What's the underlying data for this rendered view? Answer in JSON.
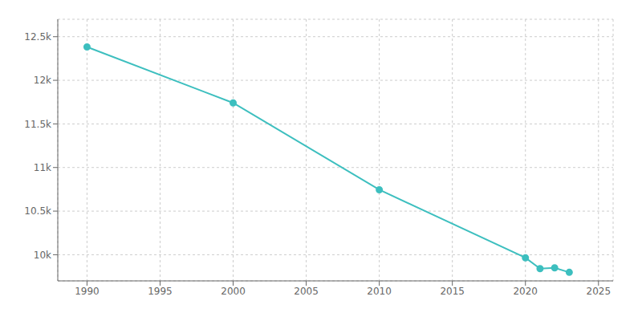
{
  "chart_data": {
    "type": "line",
    "x": [
      1990,
      2000,
      2010,
      2020,
      2021,
      2022,
      2023
    ],
    "values": [
      12383,
      11741,
      10745,
      9965,
      9840,
      9850,
      9798
    ],
    "color": "#3dbfbf",
    "marker": "circle",
    "xlim": [
      1988,
      2026
    ],
    "xticks": [
      1990,
      1995,
      2000,
      2005,
      2010,
      2015,
      2020,
      2025
    ],
    "ylim": [
      9700,
      12700
    ],
    "yticks": [
      {
        "value": 10000,
        "label": "10k"
      },
      {
        "value": 10500,
        "label": "10.5k"
      },
      {
        "value": 11000,
        "label": "11k"
      },
      {
        "value": 11500,
        "label": "11.5k"
      },
      {
        "value": 12000,
        "label": "12k"
      },
      {
        "value": 12500,
        "label": "12.5k"
      }
    ],
    "grid": true
  }
}
